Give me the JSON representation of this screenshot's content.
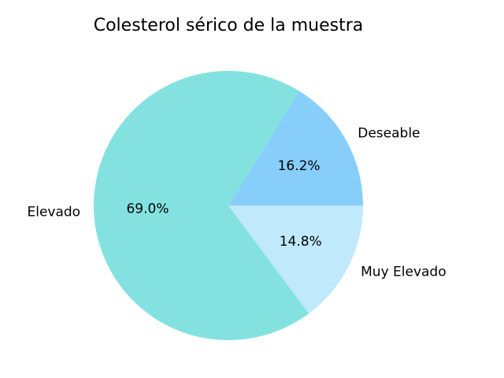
{
  "chart_data": {
    "type": "pie",
    "title": "Colesterol sérico de la muestra",
    "start_angle": 0,
    "direction": "counterclockwise",
    "slices": [
      {
        "label": "Deseable",
        "value": 16.2,
        "pct_label": "16.2%",
        "color": "#87cefa"
      },
      {
        "label": "Elevado",
        "value": 69.0,
        "pct_label": "69.0%",
        "color": "#83e2e0"
      },
      {
        "label": "Muy Elevado",
        "value": 14.8,
        "pct_label": "14.8%",
        "color": "#c0e9fb"
      }
    ]
  }
}
